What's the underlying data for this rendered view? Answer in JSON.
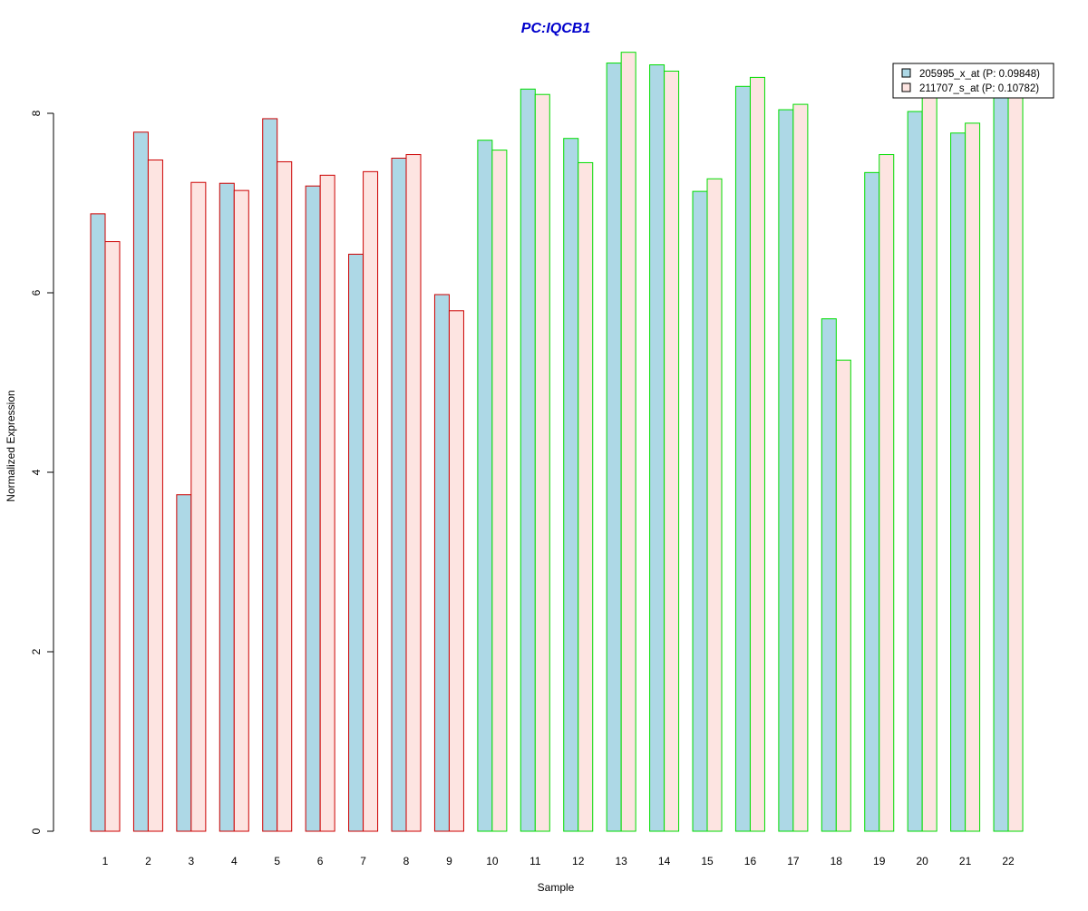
{
  "chart_data": {
    "type": "bar",
    "title": "PC:IQCB1",
    "xlabel": "Sample",
    "ylabel": "Normalized Expression",
    "categories": [
      "1",
      "2",
      "3",
      "4",
      "5",
      "6",
      "7",
      "8",
      "9",
      "10",
      "11",
      "12",
      "13",
      "14",
      "15",
      "16",
      "17",
      "18",
      "19",
      "20",
      "21",
      "22"
    ],
    "y_ticks": [
      "0",
      "2",
      "4",
      "6",
      "8"
    ],
    "ylim": [
      0,
      8.9
    ],
    "grid": false,
    "legend_position": "top-right",
    "series": [
      {
        "name": "205995_x_at (P: 0.09848)",
        "fill": "#add8e6",
        "values": [
          6.88,
          7.79,
          3.75,
          7.22,
          7.94,
          7.19,
          6.43,
          7.5,
          5.98,
          7.7,
          8.27,
          7.72,
          8.56,
          8.54,
          7.13,
          8.3,
          8.04,
          5.71,
          7.34,
          8.02,
          7.78,
          8.3
        ]
      },
      {
        "name": "211707_s_at (P: 0.10782)",
        "fill": "#fde4e1",
        "values": [
          6.57,
          7.48,
          7.23,
          7.14,
          7.46,
          7.31,
          7.35,
          7.54,
          5.8,
          7.59,
          8.21,
          7.45,
          8.68,
          8.47,
          7.27,
          8.4,
          8.1,
          5.25,
          7.54,
          8.3,
          7.89,
          8.3
        ]
      }
    ],
    "group_border_colors": [
      "#cc0000",
      "#cc0000",
      "#cc0000",
      "#cc0000",
      "#cc0000",
      "#cc0000",
      "#cc0000",
      "#cc0000",
      "#cc0000",
      "#00dd00",
      "#00dd00",
      "#00dd00",
      "#00dd00",
      "#00dd00",
      "#00dd00",
      "#00dd00",
      "#00dd00",
      "#00dd00",
      "#00dd00",
      "#00dd00",
      "#00dd00",
      "#00dd00"
    ],
    "title_color": "#0000cc"
  }
}
